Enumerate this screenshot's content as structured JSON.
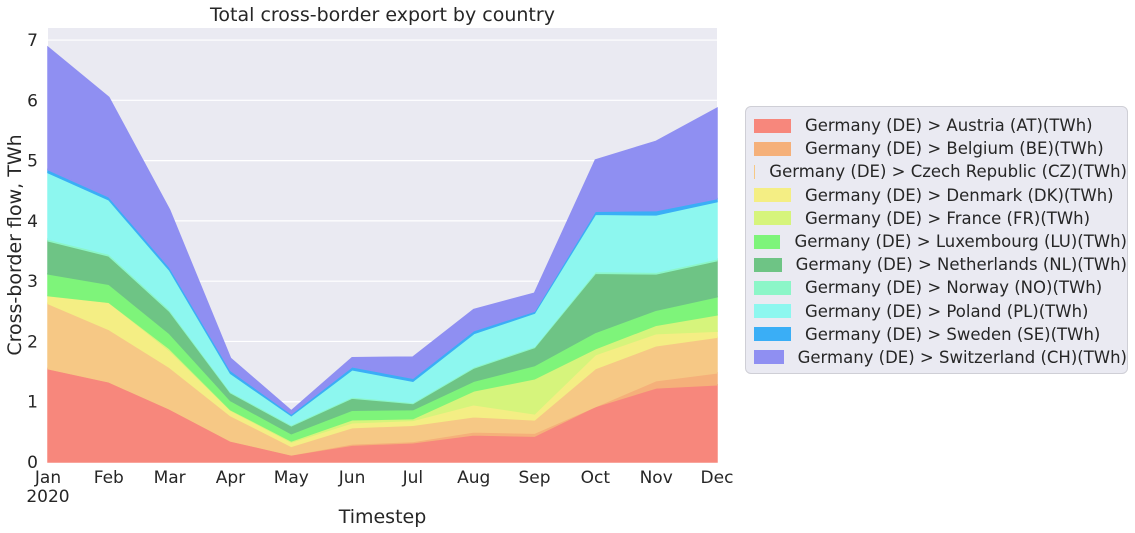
{
  "chart_data": {
    "type": "area",
    "stacked": true,
    "title": "Total cross-border export by country",
    "xlabel": "Timestep",
    "ylabel": "Cross-border flow, TWh",
    "categories": [
      "Jan",
      "Feb",
      "Mar",
      "Apr",
      "May",
      "Jun",
      "Jul",
      "Aug",
      "Sep",
      "Oct",
      "Nov",
      "Dec"
    ],
    "year_label": "2020",
    "ylim": [
      0,
      7.2
    ],
    "yticks": [
      "0",
      "1",
      "2",
      "3",
      "4",
      "5",
      "6",
      "7"
    ],
    "grid": true,
    "legend_position": "right",
    "series": [
      {
        "name": "Germany (DE) > Austria (AT)(TWh)",
        "color": "#f7877c",
        "values": [
          1.55,
          1.33,
          0.88,
          0.35,
          0.12,
          0.28,
          0.32,
          0.45,
          0.43,
          0.92,
          1.23,
          1.28
        ]
      },
      {
        "name": "Germany (DE) > Belgium (BE)(TWh)",
        "color": "#f5b07a",
        "values": [
          0.0,
          0.0,
          0.0,
          0.0,
          0.0,
          0.02,
          0.02,
          0.05,
          0.05,
          0.0,
          0.12,
          0.2
        ]
      },
      {
        "name": "Germany (DE) > Czech Republic (CZ)(TWh)",
        "color": "#f6c885",
        "values": [
          1.08,
          0.87,
          0.69,
          0.42,
          0.14,
          0.27,
          0.27,
          0.25,
          0.22,
          0.63,
          0.58,
          0.59
        ]
      },
      {
        "name": "Germany (DE) > Denmark (DK)(TWh)",
        "color": "#f4ee84",
        "values": [
          0.13,
          0.45,
          0.28,
          0.09,
          0.07,
          0.08,
          0.08,
          0.2,
          0.1,
          0.23,
          0.2,
          0.1
        ]
      },
      {
        "name": "Germany (DE) > France (FR)(TWh)",
        "color": "#d6f47c",
        "values": [
          0.0,
          0.0,
          0.03,
          0.01,
          0.02,
          0.05,
          0.03,
          0.23,
          0.58,
          0.1,
          0.14,
          0.27
        ]
      },
      {
        "name": "Germany (DE) > Luxembourg (LU)(TWh)",
        "color": "#7ef47a",
        "values": [
          0.36,
          0.3,
          0.25,
          0.15,
          0.12,
          0.16,
          0.15,
          0.16,
          0.22,
          0.27,
          0.25,
          0.3
        ]
      },
      {
        "name": "Germany (DE) > Netherlands (NL)(TWh)",
        "color": "#6ec485",
        "values": [
          0.55,
          0.47,
          0.37,
          0.13,
          0.13,
          0.2,
          0.1,
          0.22,
          0.3,
          0.98,
          0.6,
          0.6
        ]
      },
      {
        "name": "Germany (DE) > Norway (NO)(TWh)",
        "color": "#8cf6c8",
        "values": [
          0.03,
          0.03,
          0.03,
          0.02,
          0.02,
          0.02,
          0.02,
          0.02,
          0.02,
          0.03,
          0.03,
          0.03
        ]
      },
      {
        "name": "Germany (DE) > Poland (PL)(TWh)",
        "color": "#8df7ef",
        "values": [
          1.1,
          0.9,
          0.65,
          0.3,
          0.15,
          0.45,
          0.35,
          0.55,
          0.55,
          0.95,
          0.95,
          0.95
        ]
      },
      {
        "name": "Germany (DE) > Sweden (SE)(TWh)",
        "color": "#3aaef6",
        "values": [
          0.05,
          0.05,
          0.05,
          0.05,
          0.03,
          0.05,
          0.05,
          0.05,
          0.03,
          0.05,
          0.07,
          0.05
        ]
      },
      {
        "name": "Germany (DE) > Switzerland (CH)(TWh)",
        "color": "#8f8ff2",
        "values": [
          2.03,
          1.65,
          0.95,
          0.2,
          0.05,
          0.15,
          0.35,
          0.35,
          0.3,
          0.85,
          1.15,
          1.5
        ]
      }
    ]
  },
  "colors": {
    "plot_background": "#eaeaf2",
    "grid": "#ffffff"
  }
}
